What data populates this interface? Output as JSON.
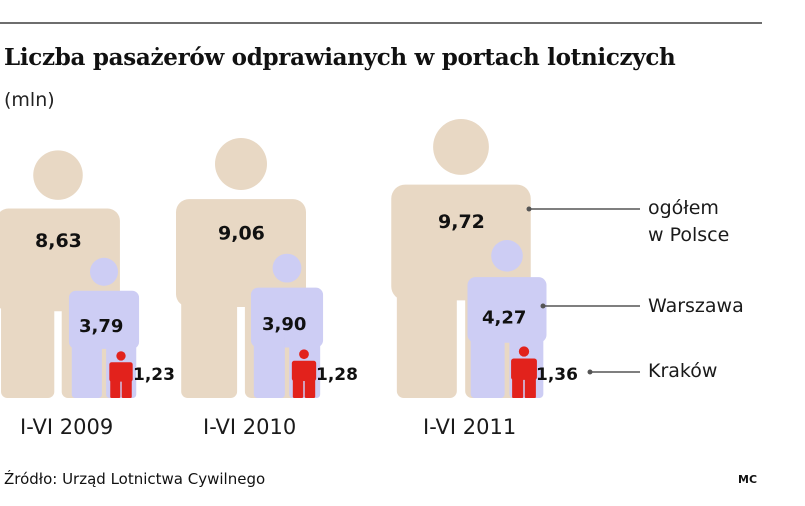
{
  "title": "Liczba pasażerów odprawianych w portach lotniczych",
  "unit": "(mln)",
  "source": "Źródło: Urząd Lotnictwa Cywilnego",
  "credit": "MC",
  "colors": {
    "ogolem": "#e8d8c4",
    "warszawa": "#cdcdf4",
    "krakow": "#e2221c",
    "rule": "#6e6e6e"
  },
  "chart_data": {
    "type": "pictogram",
    "title": "Liczba pasażerów odprawianych w portach lotniczych",
    "unit": "mln",
    "categories": [
      "I-VI 2009",
      "I-VI 2010",
      "I-VI 2011"
    ],
    "series": [
      {
        "name": "ogółem\nw Polsce",
        "labels": [
          "8,63",
          "9,06",
          "9,72"
        ],
        "values": [
          8.63,
          9.06,
          9.72
        ]
      },
      {
        "name": "Warszawa",
        "labels": [
          "3,79",
          "3,90",
          "4,27"
        ],
        "values": [
          3.79,
          3.9,
          4.27
        ]
      },
      {
        "name": "Kraków",
        "labels": [
          "1,23",
          "1,28",
          "1,36"
        ],
        "values": [
          1.23,
          1.28,
          1.36
        ]
      }
    ],
    "legend_placement": "right"
  }
}
